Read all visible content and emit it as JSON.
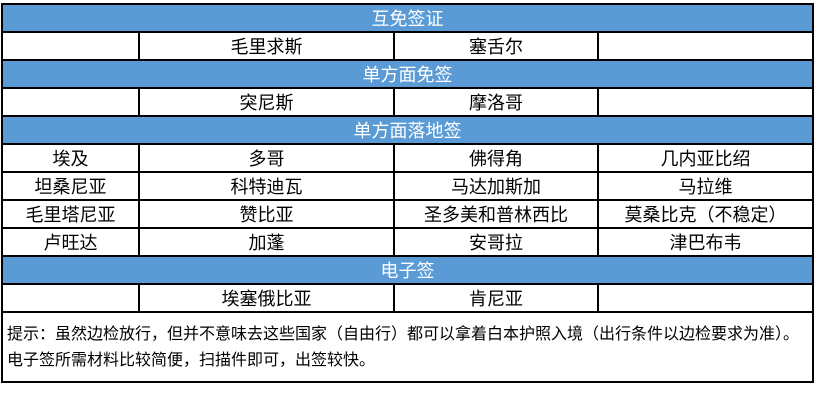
{
  "sections": [
    {
      "title": "互免签证",
      "rows": [
        [
          "",
          "毛里求斯",
          "塞舌尔",
          ""
        ]
      ]
    },
    {
      "title": "单方面免签",
      "rows": [
        [
          "",
          "突尼斯",
          "摩洛哥",
          ""
        ]
      ]
    },
    {
      "title": "单方面落地签",
      "rows": [
        [
          "埃及",
          "多哥",
          "佛得角",
          "几内亚比绍"
        ],
        [
          "坦桑尼亚",
          "科特迪瓦",
          "马达加斯加",
          "马拉维"
        ],
        [
          "毛里塔尼亚",
          "赞比亚",
          "圣多美和普林西比",
          "莫桑比克（不稳定）"
        ],
        [
          "卢旺达",
          "加蓬",
          "安哥拉",
          "津巴布韦"
        ]
      ]
    },
    {
      "title": "电子签",
      "rows": [
        [
          "",
          "埃塞俄比亚",
          "肯尼亚",
          ""
        ]
      ]
    }
  ],
  "note": "提示：虽然边检放行，但并不意味去这些国家（自由行）都可以拿着白本护照入境（出行条件以边检要求为准）。电子签所需材料比较简便，扫描件即可，出签较快。",
  "colors": {
    "header": "#5b9bd5"
  }
}
